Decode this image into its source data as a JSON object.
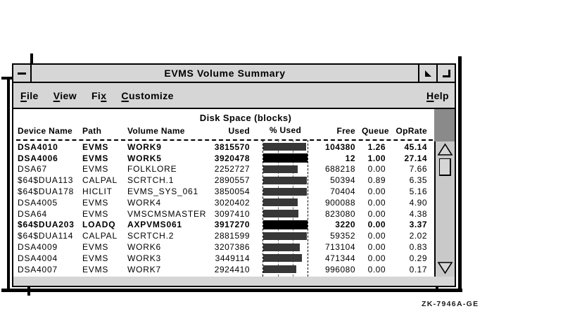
{
  "colors": {
    "window_gray": "#d6d6d6",
    "panel_dark_gray": "#8a8a8a",
    "scroll_track": "#c9c9c9",
    "bar_fill": "#373737",
    "bar_full": "#000000"
  },
  "window": {
    "title": "EVMS Volume Summary"
  },
  "menu": {
    "items": [
      {
        "label": "File",
        "underline": 0
      },
      {
        "label": "View",
        "underline": 0
      },
      {
        "label": "Fix",
        "underline": 2
      },
      {
        "label": "Customize",
        "underline": 0
      }
    ],
    "help": {
      "label": "Help",
      "underline": 0
    }
  },
  "table": {
    "group_header": "Disk Space (blocks)",
    "headers": {
      "device": "Device Name",
      "path": "Path",
      "volume": "Volume Name",
      "used": "Used",
      "pct": "% Used",
      "free": "Free",
      "queue": "Queue",
      "oprate": "OpRate"
    },
    "rows": [
      {
        "device": "DSA4010",
        "path": "EVMS",
        "volume": "WORK9",
        "used": "3815570",
        "pct_used": 97,
        "free": "104380",
        "queue": "1.26",
        "oprate": "45.14",
        "highlight": true
      },
      {
        "device": "DSA4006",
        "path": "EVMS",
        "volume": "WORK5",
        "used": "3920478",
        "pct_used": 100,
        "free": "12",
        "queue": "1.00",
        "oprate": "27.14",
        "highlight": true
      },
      {
        "device": "DSA67",
        "path": "EVMS",
        "volume": "FOLKLORE",
        "used": "2252727",
        "pct_used": 77,
        "free": "688218",
        "queue": "0.00",
        "oprate": "7.66",
        "highlight": false
      },
      {
        "device": "$64$DUA113",
        "path": "CALPAL",
        "volume": "SCRTCH.1",
        "used": "2890557",
        "pct_used": 98,
        "free": "50394",
        "queue": "0.89",
        "oprate": "6.35",
        "highlight": false
      },
      {
        "device": "$64$DUA178",
        "path": "HICLIT",
        "volume": "EVMS_SYS_061",
        "used": "3850054",
        "pct_used": 98,
        "free": "70404",
        "queue": "0.00",
        "oprate": "5.16",
        "highlight": false
      },
      {
        "device": "DSA4005",
        "path": "EVMS",
        "volume": "WORK4",
        "used": "3020402",
        "pct_used": 77,
        "free": "900088",
        "queue": "0.00",
        "oprate": "4.90",
        "highlight": false
      },
      {
        "device": "DSA64",
        "path": "EVMS",
        "volume": "VMSCMSMASTER",
        "used": "3097410",
        "pct_used": 79,
        "free": "823080",
        "queue": "0.00",
        "oprate": "4.38",
        "highlight": false
      },
      {
        "device": "$64$DUA203",
        "path": "LOADQ",
        "volume": "AXPVMS061",
        "used": "3917270",
        "pct_used": 100,
        "free": "3220",
        "queue": "0.00",
        "oprate": "3.37",
        "highlight": true
      },
      {
        "device": "$64$DUA114",
        "path": "CALPAL",
        "volume": "SCRTCH.2",
        "used": "2881599",
        "pct_used": 98,
        "free": "59352",
        "queue": "0.00",
        "oprate": "2.02",
        "highlight": false
      },
      {
        "device": "DSA4009",
        "path": "EVMS",
        "volume": "WORK6",
        "used": "3207386",
        "pct_used": 82,
        "free": "713104",
        "queue": "0.00",
        "oprate": "0.83",
        "highlight": false
      },
      {
        "device": "DSA4004",
        "path": "EVMS",
        "volume": "WORK3",
        "used": "3449114",
        "pct_used": 88,
        "free": "471344",
        "queue": "0.00",
        "oprate": "0.29",
        "highlight": false
      },
      {
        "device": "DSA4007",
        "path": "EVMS",
        "volume": "WORK7",
        "used": "2924410",
        "pct_used": 75,
        "free": "996080",
        "queue": "0.00",
        "oprate": "0.17",
        "highlight": false
      }
    ]
  },
  "footer_code": "ZK-7946A-GE"
}
